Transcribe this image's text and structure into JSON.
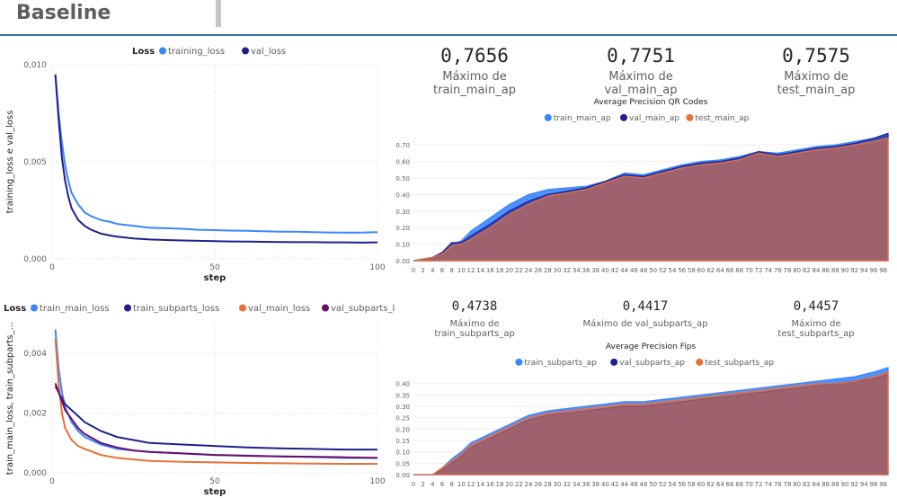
{
  "page": {
    "title": "Baseline"
  },
  "kpis_top": [
    {
      "value": "0,7656",
      "label": "Máximo de train_main_ap"
    },
    {
      "value": "0,7751",
      "label": "Máximo de val_main_ap"
    },
    {
      "value": "0,7575",
      "label": "Máximo de test_main_ap"
    }
  ],
  "kpis_bottom": [
    {
      "value": "0,4738",
      "label": "Máximo de train_subparts_ap"
    },
    {
      "value": "0,4417",
      "label": "Máximo de val_subparts_ap"
    },
    {
      "value": "0,4457",
      "label": "Máximo de test_subparts_ap"
    }
  ],
  "chart_data": [
    {
      "type": "line",
      "legend_title": "Loss",
      "xlabel": "step",
      "ylabel": "training_loss e val_loss",
      "xlim": [
        0,
        100
      ],
      "ylim": [
        0,
        0.01
      ],
      "xticks": [
        0,
        50,
        100
      ],
      "yticks": [
        "0,000",
        "0,005",
        "0,010"
      ],
      "grid": true,
      "legend_position": "top",
      "series": [
        {
          "name": "training_loss",
          "color": "#3a86ff",
          "x": [
            1,
            2,
            3,
            4,
            5,
            6,
            8,
            10,
            12,
            15,
            18,
            20,
            25,
            30,
            35,
            40,
            45,
            50,
            55,
            60,
            65,
            70,
            75,
            80,
            85,
            90,
            95,
            100
          ],
          "y": [
            0.0095,
            0.0075,
            0.006,
            0.0048,
            0.004,
            0.0034,
            0.0028,
            0.0024,
            0.0022,
            0.002,
            0.0019,
            0.0018,
            0.0017,
            0.0016,
            0.00158,
            0.00155,
            0.0015,
            0.00148,
            0.00146,
            0.00145,
            0.00142,
            0.0014,
            0.0014,
            0.00138,
            0.00136,
            0.00135,
            0.00135,
            0.00138
          ]
        },
        {
          "name": "val_loss",
          "color": "#1f1f8f",
          "x": [
            1,
            2,
            3,
            4,
            5,
            6,
            8,
            10,
            12,
            15,
            18,
            20,
            25,
            30,
            35,
            40,
            45,
            50,
            55,
            60,
            65,
            70,
            75,
            80,
            85,
            90,
            95,
            100
          ],
          "y": [
            0.0095,
            0.0072,
            0.0052,
            0.004,
            0.0032,
            0.0026,
            0.002,
            0.0017,
            0.0015,
            0.0013,
            0.0012,
            0.00115,
            0.00105,
            0.001,
            0.00097,
            0.00095,
            0.00093,
            0.00091,
            0.0009,
            0.00089,
            0.00088,
            0.00087,
            0.00086,
            0.00086,
            0.00085,
            0.00085,
            0.00084,
            0.00085
          ]
        }
      ]
    },
    {
      "type": "area",
      "title": "Average Precision QR Codes",
      "xlim": [
        0,
        99
      ],
      "ylim": [
        0,
        0.75
      ],
      "yticks": [
        "0.00",
        "0.10",
        "0.20",
        "0.30",
        "0.40",
        "0.50",
        "0.60",
        "0.70"
      ],
      "xtick_step": 2,
      "legend_position": "top",
      "series": [
        {
          "name": "train_main_ap",
          "color": "#3a86ff",
          "x": [
            0,
            4,
            6,
            8,
            10,
            12,
            16,
            20,
            24,
            28,
            32,
            36,
            40,
            44,
            48,
            52,
            56,
            60,
            64,
            68,
            72,
            76,
            80,
            84,
            88,
            92,
            96,
            99
          ],
          "y": [
            0.0,
            0.02,
            0.05,
            0.1,
            0.12,
            0.18,
            0.26,
            0.34,
            0.4,
            0.43,
            0.44,
            0.45,
            0.48,
            0.53,
            0.52,
            0.55,
            0.58,
            0.6,
            0.61,
            0.63,
            0.66,
            0.65,
            0.67,
            0.69,
            0.7,
            0.72,
            0.74,
            0.76
          ]
        },
        {
          "name": "val_main_ap",
          "color": "#1f1f8f",
          "x": [
            0,
            4,
            6,
            8,
            10,
            12,
            16,
            20,
            24,
            28,
            32,
            36,
            40,
            44,
            48,
            52,
            56,
            60,
            64,
            68,
            72,
            76,
            80,
            84,
            88,
            92,
            96,
            99
          ],
          "y": [
            0.0,
            0.02,
            0.05,
            0.11,
            0.11,
            0.15,
            0.22,
            0.3,
            0.36,
            0.4,
            0.42,
            0.44,
            0.48,
            0.52,
            0.51,
            0.54,
            0.57,
            0.59,
            0.6,
            0.62,
            0.66,
            0.64,
            0.66,
            0.68,
            0.69,
            0.71,
            0.74,
            0.77
          ]
        },
        {
          "name": "test_main_ap",
          "color": "#e8703a",
          "x": [
            0,
            4,
            6,
            8,
            10,
            12,
            16,
            20,
            24,
            28,
            32,
            36,
            40,
            44,
            48,
            52,
            56,
            60,
            64,
            68,
            72,
            76,
            80,
            84,
            88,
            92,
            96,
            99
          ],
          "y": [
            0.0,
            0.02,
            0.04,
            0.09,
            0.1,
            0.13,
            0.2,
            0.28,
            0.34,
            0.39,
            0.41,
            0.43,
            0.47,
            0.51,
            0.5,
            0.53,
            0.56,
            0.58,
            0.59,
            0.61,
            0.65,
            0.63,
            0.65,
            0.67,
            0.68,
            0.7,
            0.72,
            0.74
          ]
        }
      ]
    },
    {
      "type": "line",
      "legend_title": "Loss",
      "xlabel": "step",
      "ylabel": "train_main_loss, train_subparts_...",
      "xlim": [
        0,
        100
      ],
      "ylim": [
        0,
        0.005
      ],
      "xticks": [
        0,
        50,
        100
      ],
      "yticks": [
        "0,000",
        "0,002",
        "0,004"
      ],
      "grid": true,
      "legend_position": "top",
      "series": [
        {
          "name": "train_main_loss",
          "color": "#3a86ff",
          "x": [
            1,
            2,
            3,
            4,
            6,
            8,
            10,
            15,
            20,
            25,
            30,
            40,
            50,
            60,
            70,
            80,
            90,
            100
          ],
          "y": [
            0.0048,
            0.0035,
            0.0027,
            0.0022,
            0.0017,
            0.0014,
            0.0012,
            0.00095,
            0.0008,
            0.00075,
            0.0007,
            0.00065,
            0.0006,
            0.00058,
            0.00055,
            0.00053,
            0.0005,
            0.0005
          ]
        },
        {
          "name": "train_subparts_loss",
          "color": "#1f1f8f",
          "x": [
            1,
            2,
            3,
            4,
            6,
            8,
            10,
            15,
            20,
            25,
            30,
            40,
            50,
            60,
            70,
            80,
            90,
            100
          ],
          "y": [
            0.0029,
            0.0027,
            0.0025,
            0.0023,
            0.0021,
            0.0019,
            0.0017,
            0.0014,
            0.0012,
            0.0011,
            0.001,
            0.00095,
            0.0009,
            0.00085,
            0.00082,
            0.0008,
            0.00078,
            0.00078
          ]
        },
        {
          "name": "val_main_loss",
          "color": "#e8703a",
          "x": [
            1,
            2,
            3,
            4,
            6,
            8,
            10,
            15,
            20,
            25,
            30,
            40,
            50,
            60,
            70,
            80,
            90,
            100
          ],
          "y": [
            0.0045,
            0.003,
            0.002,
            0.0015,
            0.0011,
            0.0009,
            0.0008,
            0.0006,
            0.0005,
            0.00045,
            0.0004,
            0.00037,
            0.00035,
            0.00033,
            0.00032,
            0.00031,
            0.0003,
            0.0003
          ]
        },
        {
          "name": "val_subparts_loss",
          "color": "#6a0f6a",
          "x": [
            1,
            2,
            3,
            4,
            6,
            8,
            10,
            15,
            20,
            25,
            30,
            40,
            50,
            60,
            70,
            80,
            90,
            100
          ],
          "y": [
            0.003,
            0.0027,
            0.0024,
            0.0021,
            0.0018,
            0.0015,
            0.0013,
            0.001,
            0.00085,
            0.00075,
            0.0007,
            0.00065,
            0.0006,
            0.00057,
            0.00055,
            0.00054,
            0.00052,
            0.0005
          ]
        }
      ]
    },
    {
      "type": "area",
      "title": "Average Precision Fips",
      "xlim": [
        0,
        99
      ],
      "ylim": [
        0,
        0.45
      ],
      "yticks": [
        "0.00",
        "0.05",
        "0.10",
        "0.15",
        "0.20",
        "0.25",
        "0.30",
        "0.35",
        "0.40"
      ],
      "xtick_step": 2,
      "legend_position": "top",
      "series": [
        {
          "name": "train_subparts_ap",
          "color": "#3a86ff",
          "x": [
            0,
            4,
            6,
            8,
            10,
            12,
            16,
            20,
            24,
            28,
            32,
            36,
            40,
            44,
            48,
            52,
            56,
            60,
            64,
            68,
            72,
            76,
            80,
            84,
            88,
            92,
            96,
            99
          ],
          "y": [
            0.0,
            0.0,
            0.03,
            0.07,
            0.1,
            0.14,
            0.18,
            0.22,
            0.26,
            0.28,
            0.29,
            0.3,
            0.31,
            0.32,
            0.32,
            0.33,
            0.34,
            0.35,
            0.36,
            0.37,
            0.38,
            0.39,
            0.4,
            0.41,
            0.42,
            0.43,
            0.45,
            0.47
          ]
        },
        {
          "name": "val_subparts_ap",
          "color": "#1f1f8f",
          "x": [
            0,
            4,
            6,
            8,
            10,
            12,
            16,
            20,
            24,
            28,
            32,
            36,
            40,
            44,
            48,
            52,
            56,
            60,
            64,
            68,
            72,
            76,
            80,
            84,
            88,
            92,
            96,
            99
          ],
          "y": [
            0.0,
            0.0,
            0.02,
            0.05,
            0.08,
            0.12,
            0.16,
            0.2,
            0.24,
            0.26,
            0.27,
            0.28,
            0.29,
            0.3,
            0.3,
            0.31,
            0.32,
            0.33,
            0.34,
            0.35,
            0.36,
            0.37,
            0.38,
            0.39,
            0.4,
            0.41,
            0.42,
            0.44
          ]
        },
        {
          "name": "test_subparts_ap",
          "color": "#e8703a",
          "x": [
            0,
            4,
            6,
            8,
            10,
            12,
            16,
            20,
            24,
            28,
            32,
            36,
            40,
            44,
            48,
            52,
            56,
            60,
            64,
            68,
            72,
            76,
            80,
            84,
            88,
            92,
            96,
            99
          ],
          "y": [
            0.0,
            0.0,
            0.03,
            0.06,
            0.09,
            0.13,
            0.17,
            0.21,
            0.25,
            0.27,
            0.28,
            0.29,
            0.3,
            0.31,
            0.31,
            0.32,
            0.33,
            0.34,
            0.35,
            0.36,
            0.37,
            0.38,
            0.39,
            0.4,
            0.4,
            0.41,
            0.43,
            0.45
          ]
        }
      ]
    }
  ]
}
